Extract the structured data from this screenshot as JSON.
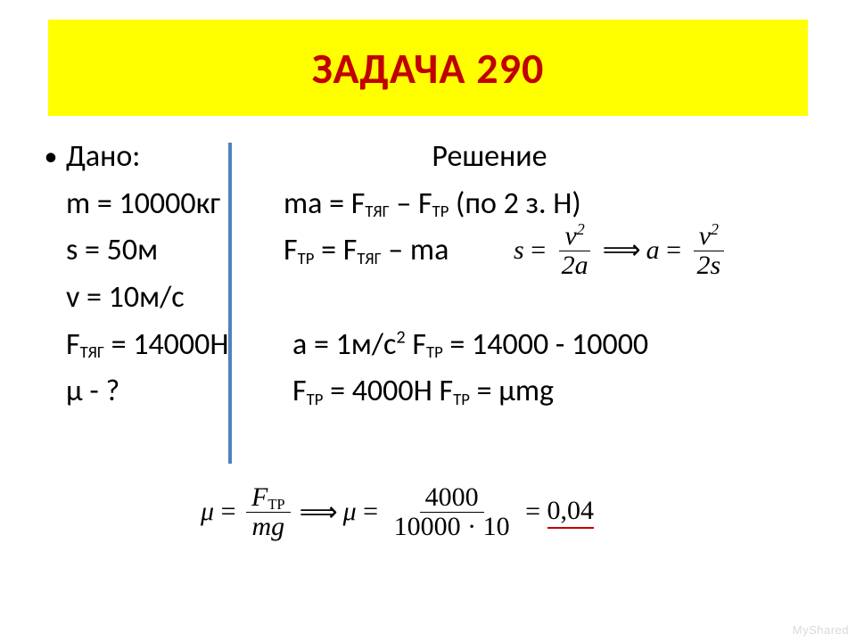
{
  "title": "ЗАДАЧА   290",
  "colors": {
    "title_bg": "#ffff00",
    "title_fg": "#c00000",
    "separator": "#4f81bd",
    "text": "#000000",
    "background": "#ffffff",
    "accent_underline": "#c00000",
    "watermark": "#d9d9d9"
  },
  "given": {
    "header": "Дано:",
    "items": [
      "m = 10000кг",
      "s = 50м",
      "v = 10м/с",
      "F<sub>ТЯГ</sub> = 14000Н",
      "μ - ?"
    ]
  },
  "solution": {
    "header": "Решение",
    "lines": [
      "ma = F<sub>ТЯГ</sub> – F<sub>ТР</sub>    (по 2 з. Н)",
      "F<sub>ТР</sub> = F<sub>ТЯГ</sub> – ma",
      "",
      "a = 1м/с<sup>2</sup>   F<sub>ТР</sub> = 14000 - 10000",
      " F<sub>ТР</sub> = 4000Н     F<sub>ТР</sub> = μmg"
    ]
  },
  "formula1": {
    "left_var": "s",
    "left_num": "v",
    "left_den": "2a",
    "right_var": "a",
    "right_num": "v",
    "right_den": "2s",
    "sup": "2"
  },
  "formula2": {
    "left_var": "μ",
    "left_num": "F",
    "left_num_sub": "TP",
    "left_den": "mg",
    "right_var": "μ",
    "right_num": "4000",
    "right_den": "10000 · 10",
    "result": "0,04"
  },
  "watermark": "MyShared"
}
